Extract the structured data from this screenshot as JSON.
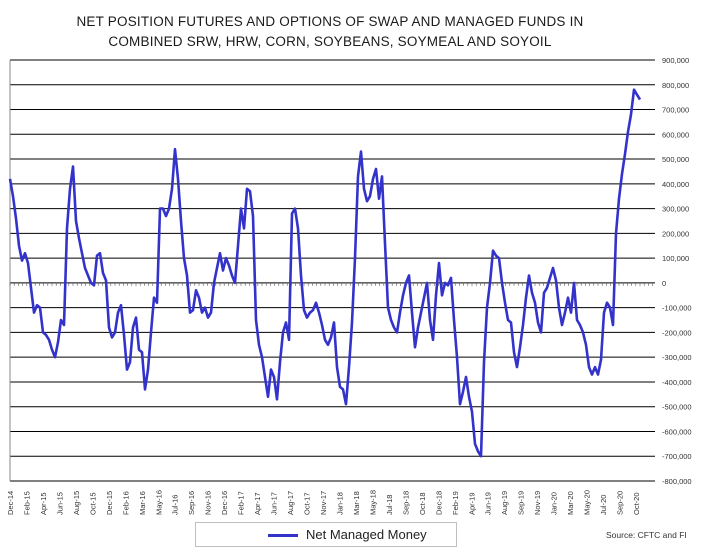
{
  "chart_data": {
    "type": "line",
    "title": "NET POSITION FUTURES AND OPTIONS OF SWAP AND MANAGED FUNDS IN",
    "subtitle": "COMBINED SRW, HRW, CORN, SOYBEANS, SOYMEAL AND SOYOIL",
    "y_ticks": [
      "900,000",
      "800,000",
      "700,000",
      "600,000",
      "500,000",
      "400,000",
      "300,000",
      "200,000",
      "100,000",
      "0",
      "-100,000",
      "-200,000",
      "-300,000",
      "-400,000",
      "-500,000",
      "-600,000",
      "-700,000",
      "-800,000"
    ],
    "ylim": [
      -800000,
      900000
    ],
    "x_ticks": [
      "Dec-14",
      "Feb-15",
      "Apr-15",
      "Jun-15",
      "Aug-15",
      "Oct-15",
      "Dec-15",
      "Feb-16",
      "Mar-16",
      "May-16",
      "Jul-16",
      "Sep-16",
      "Nov-16",
      "Dec-16",
      "Feb-17",
      "Apr-17",
      "Jun-17",
      "Aug-17",
      "Oct-17",
      "Nov-17",
      "Jan-18",
      "Mar-18",
      "May-18",
      "Jul-18",
      "Sep-18",
      "Oct-18",
      "Dec-18",
      "Feb-19",
      "Apr-19",
      "Jun-19",
      "Aug-19",
      "Sep-19",
      "Nov-19",
      "Jan-20",
      "Mar-20",
      "May-20",
      "Jul-20",
      "Sep-20",
      "Oct-20"
    ],
    "grid": "horizontal",
    "legend_position": "bottom",
    "series": [
      {
        "name": "Net Managed Money",
        "color": "#3333cc",
        "values": [
          420000,
          350000,
          260000,
          150000,
          90000,
          120000,
          80000,
          -20000,
          -120000,
          -90000,
          -100000,
          -200000,
          -210000,
          -230000,
          -270000,
          -300000,
          -240000,
          -150000,
          -170000,
          220000,
          380000,
          470000,
          250000,
          180000,
          120000,
          60000,
          30000,
          0,
          -10000,
          110000,
          120000,
          40000,
          10000,
          -180000,
          -220000,
          -200000,
          -120000,
          -90000,
          -210000,
          -350000,
          -320000,
          -180000,
          -140000,
          -270000,
          -280000,
          -430000,
          -350000,
          -200000,
          -60000,
          -80000,
          300000,
          300000,
          270000,
          300000,
          380000,
          540000,
          420000,
          250000,
          100000,
          30000,
          -120000,
          -110000,
          -30000,
          -60000,
          -120000,
          -100000,
          -140000,
          -120000,
          0,
          60000,
          120000,
          50000,
          100000,
          70000,
          30000,
          0,
          150000,
          300000,
          220000,
          380000,
          370000,
          270000,
          -150000,
          -250000,
          -300000,
          -380000,
          -460000,
          -350000,
          -380000,
          -470000,
          -320000,
          -200000,
          -160000,
          -230000,
          280000,
          300000,
          220000,
          30000,
          -110000,
          -140000,
          -120000,
          -110000,
          -80000,
          -120000,
          -170000,
          -230000,
          -250000,
          -220000,
          -160000,
          -340000,
          -420000,
          -430000,
          -490000,
          -340000,
          -160000,
          100000,
          430000,
          530000,
          380000,
          330000,
          350000,
          420000,
          460000,
          340000,
          430000,
          160000,
          -100000,
          -150000,
          -180000,
          -200000,
          -120000,
          -50000,
          0,
          30000,
          -120000,
          -260000,
          -180000,
          -120000,
          -60000,
          0,
          -150000,
          -230000,
          -50000,
          80000,
          -50000,
          0,
          -10000,
          20000,
          -150000,
          -300000,
          -490000,
          -440000,
          -380000,
          -460000,
          -520000,
          -650000,
          -680000,
          -700000,
          -320000,
          -100000,
          0,
          130000,
          110000,
          100000,
          0,
          -80000,
          -150000,
          -160000,
          -280000,
          -340000,
          -260000,
          -170000,
          -60000,
          30000,
          -40000,
          -80000,
          -160000,
          -200000,
          -40000,
          -20000,
          20000,
          60000,
          10000,
          -100000,
          -170000,
          -120000,
          -60000,
          -120000,
          0,
          -150000,
          -170000,
          -200000,
          -250000,
          -340000,
          -370000,
          -340000,
          -370000,
          -310000,
          -120000,
          -80000,
          -100000,
          -170000,
          200000,
          340000,
          440000,
          520000,
          610000,
          680000,
          780000,
          760000,
          740000
        ]
      }
    ],
    "source": "Source: CFTC and FI"
  },
  "legend": {
    "label": "Net Managed Money"
  },
  "colors": {
    "line": "#3333cc",
    "grid": "#000000",
    "axis": "#888888"
  }
}
